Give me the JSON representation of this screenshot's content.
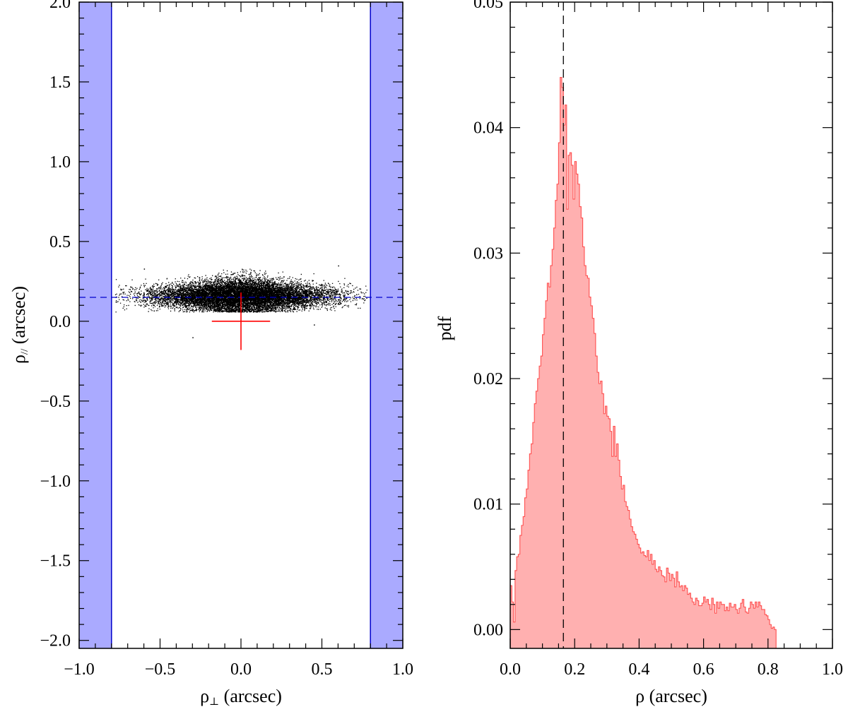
{
  "chart_data": [
    {
      "type": "scatter",
      "xlabel": "ρ",
      "xlabel_sub": "⊥",
      "xlabel_unit": "(arcsec)",
      "ylabel": "ρ",
      "ylabel_sub": "//",
      "ylabel_unit": "(arcsec)",
      "xlim": [
        -1.0,
        1.0
      ],
      "ylim": [
        -2.05,
        2.0
      ],
      "xticks": [
        -1.0,
        -0.5,
        0.0,
        0.5,
        1.0
      ],
      "xtick_labels": [
        "−1.0",
        "−0.5",
        "0.0",
        "0.5",
        "1.0"
      ],
      "yticks": [
        -2.0,
        -1.5,
        -1.0,
        -0.5,
        0.0,
        0.5,
        1.0,
        1.5,
        2.0
      ],
      "ytick_labels": [
        "−2.0",
        "−1.5",
        "−1.0",
        "−0.5",
        "0.0",
        "0.5",
        "1.0",
        "1.5",
        "2.0"
      ],
      "shaded_bands": [
        {
          "x": [
            -1.0,
            -0.8
          ],
          "color": "#aaaaff",
          "edge_color": "#0000cc"
        },
        {
          "x": [
            0.8,
            1.0
          ],
          "color": "#aaaaff",
          "edge_color": "#0000cc"
        }
      ],
      "dashed_hline": {
        "y": 0.15,
        "color": "#0000cc"
      },
      "scatter_cloud": {
        "x_center": 0.0,
        "y_center": 0.16,
        "x_extent": [
          -0.78,
          0.78
        ],
        "y_extent": [
          0.06,
          0.33
        ],
        "approx_points": 12000,
        "color": "#000000"
      },
      "cross": {
        "x": 0.0,
        "y": 0.0,
        "x_err": 0.18,
        "y_err": 0.18,
        "color": "#ff0000"
      },
      "grid": false
    },
    {
      "type": "histogram",
      "xlabel": "ρ (arcsec)",
      "ylabel": "pdf",
      "xlim": [
        0.0,
        1.0
      ],
      "ylim": [
        -0.0015,
        0.05
      ],
      "xticks": [
        0.0,
        0.2,
        0.4,
        0.6,
        0.8,
        1.0
      ],
      "xtick_labels": [
        "0.0",
        "0.2",
        "0.4",
        "0.6",
        "0.8",
        "1.0"
      ],
      "yticks": [
        0.0,
        0.01,
        0.02,
        0.03,
        0.04,
        0.05
      ],
      "ytick_labels": [
        "0.00",
        "0.01",
        "0.02",
        "0.03",
        "0.04",
        "0.05"
      ],
      "bin_width": 0.005,
      "bin_start": 0.0,
      "values": [
        0.0035,
        0.0022,
        0.0006,
        0.0047,
        0.0058,
        0.006,
        0.0075,
        0.0083,
        0.009,
        0.0105,
        0.0112,
        0.0127,
        0.014,
        0.0148,
        0.0165,
        0.018,
        0.019,
        0.02,
        0.021,
        0.0218,
        0.0235,
        0.0248,
        0.0262,
        0.0276,
        0.0273,
        0.029,
        0.0303,
        0.032,
        0.0342,
        0.0355,
        0.0388,
        0.044,
        0.0432,
        0.0402,
        0.0418,
        0.0335,
        0.0378,
        0.038,
        0.037,
        0.0343,
        0.0373,
        0.0363,
        0.0355,
        0.0337,
        0.0328,
        0.0305,
        0.029,
        0.0282,
        0.028,
        0.0265,
        0.0258,
        0.0248,
        0.0236,
        0.0218,
        0.0205,
        0.0196,
        0.0198,
        0.0188,
        0.0172,
        0.0178,
        0.017,
        0.0168,
        0.0158,
        0.0138,
        0.0162,
        0.0138,
        0.0148,
        0.0135,
        0.0122,
        0.0112,
        0.0115,
        0.0102,
        0.0098,
        0.0095,
        0.0088,
        0.0082,
        0.0078,
        0.0076,
        0.0072,
        0.0068,
        0.0065,
        0.0061,
        0.0062,
        0.0059,
        0.0058,
        0.0063,
        0.0055,
        0.006,
        0.0052,
        0.0055,
        0.0048,
        0.0046,
        0.005,
        0.0047,
        0.0043,
        0.0042,
        0.0038,
        0.0049,
        0.0045,
        0.0039,
        0.0044,
        0.0041,
        0.0034,
        0.0046,
        0.0038,
        0.0034,
        0.0035,
        0.0031,
        0.0035,
        0.0033,
        0.0028,
        0.0029,
        0.0025,
        0.0022,
        0.002,
        0.0025,
        0.0023,
        0.0019,
        0.0019,
        0.0021,
        0.0026,
        0.0022,
        0.0024,
        0.002,
        0.0016,
        0.0025,
        0.002,
        0.0013,
        0.0022,
        0.0017,
        0.0022,
        0.002,
        0.002,
        0.0015,
        0.0018,
        0.0015,
        0.0021,
        0.0018,
        0.0018,
        0.002,
        0.0016,
        0.0013,
        0.0017,
        0.0021,
        0.0024,
        0.0018,
        0.0014,
        0.0013,
        0.0017,
        0.0022,
        0.002,
        0.0017,
        0.0022,
        0.0018,
        0.0022,
        0.0019,
        0.0016,
        0.0016,
        0.0012,
        0.0011,
        0.0008,
        0.0004,
        0.0001,
        0.0002,
        0.0
      ],
      "fill_color": "#ffb0b0",
      "edge_color": "#ff5050",
      "dashed_vline": {
        "x": 0.165,
        "color": "#000000"
      },
      "grid": false
    }
  ]
}
